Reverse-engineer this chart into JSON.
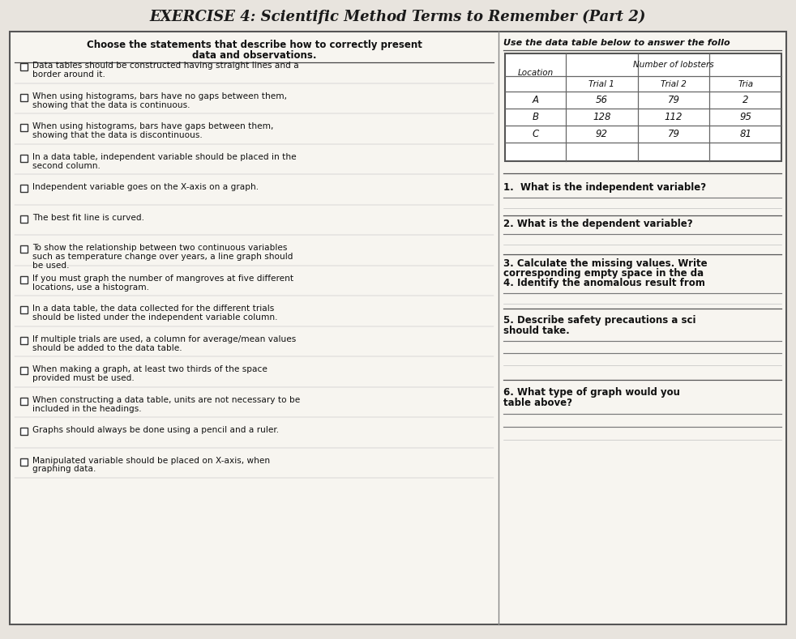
{
  "title": "EXERCISE 4: Scientific Method Terms to Remember (Part 2)",
  "bg_color": "#e8e4de",
  "panel_bg": "#f7f5f0",
  "left_header_line1": "Choose the statements that describe how to correctly present",
  "left_header_line2": "data and observations.",
  "right_header": "Use the data table below to answer the follo",
  "left_items": [
    "Data tables should be constructed having straight lines and a\nborder around it.",
    "When using histograms, bars have no gaps between them,\nshowing that the data is continuous.",
    "When using histograms, bars have gaps between them,\nshowing that the data is discontinuous.",
    "In a data table, independent variable should be placed in the\nsecond column.",
    "Independent variable goes on the X-axis on a graph.",
    "The best fit line is curved.",
    "To show the relationship between two continuous variables\nsuch as temperature change over years, a line graph should\nbe used.",
    "If you must graph the number of mangroves at five different\nlocations, use a histogram.",
    "In a data table, the data collected for the different trials\nshould be listed under the independent variable column.",
    "If multiple trials are used, a column for average/mean values\nshould be added to the data table.",
    "When making a graph, at least two thirds of the space\nprovided must be used.",
    "When constructing a data table, units are not necessary to be\nincluded in the headings.",
    "Graphs should always be done using a pencil and a ruler.",
    "Manipulated variable should be placed on X-axis, when\ngraphing data."
  ],
  "table_col_header1": "Location",
  "table_col_header2": "Number of lobsters",
  "table_trial_headers": [
    "Trial 1",
    "Trial 2",
    "Tria"
  ],
  "table_rows": [
    [
      "A",
      "56",
      "79",
      "2"
    ],
    [
      "B",
      "128",
      "112",
      "95"
    ],
    [
      "C",
      "92",
      "79",
      "81"
    ]
  ],
  "q1": "1.  What is the independent variable?",
  "q2": "2. What is the dependent variable?",
  "q3a": "3. Calculate the missing values. Write",
  "q3b": "corresponding empty space in the da",
  "q4": "4. Identify the anomalous result from",
  "q5a": "5. Describe safety precautions a sci",
  "q5b": "should take.",
  "q6a": "6. What type of graph would you",
  "q6b": "table above?"
}
